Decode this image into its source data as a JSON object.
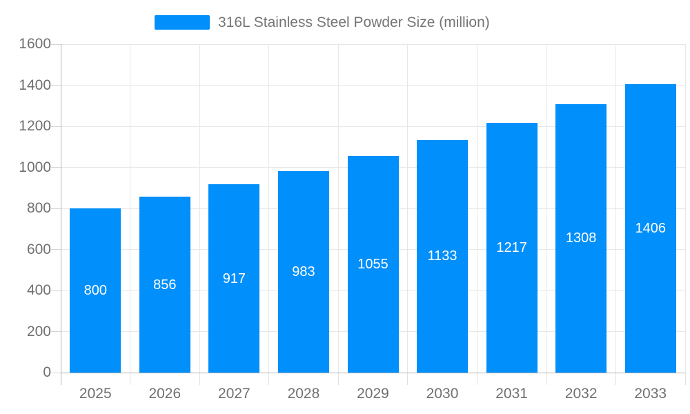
{
  "legend": {
    "label": "316L Stainless Steel Powder Size (million)",
    "swatch_color": "#008FFB"
  },
  "chart_data": {
    "type": "bar",
    "title": "316L Stainless Steel Powder Size (million)",
    "categories": [
      "2025",
      "2026",
      "2027",
      "2028",
      "2029",
      "2030",
      "2031",
      "2032",
      "2033"
    ],
    "values": [
      800,
      856,
      917,
      983,
      1055,
      1133,
      1217,
      1308,
      1406
    ],
    "series": [
      {
        "name": "316L Stainless Steel Powder Size (million)",
        "values": [
          800,
          856,
          917,
          983,
          1055,
          1133,
          1217,
          1308,
          1406
        ]
      }
    ],
    "value_labels": [
      "800",
      "856",
      "917",
      "983",
      "1055",
      "1133",
      "1217",
      "1308",
      "1406"
    ],
    "xlabel": "",
    "ylabel": "",
    "ylim": [
      0,
      1600
    ],
    "ytick_step": 200,
    "ytick_labels": [
      "0",
      "200",
      "400",
      "600",
      "800",
      "1000",
      "1200",
      "1400",
      "1600"
    ],
    "grid": true,
    "legend_position": "top",
    "bar_color": "#008FFB",
    "value_label_color": "#ffffff",
    "axis_label_color": "#707070"
  }
}
